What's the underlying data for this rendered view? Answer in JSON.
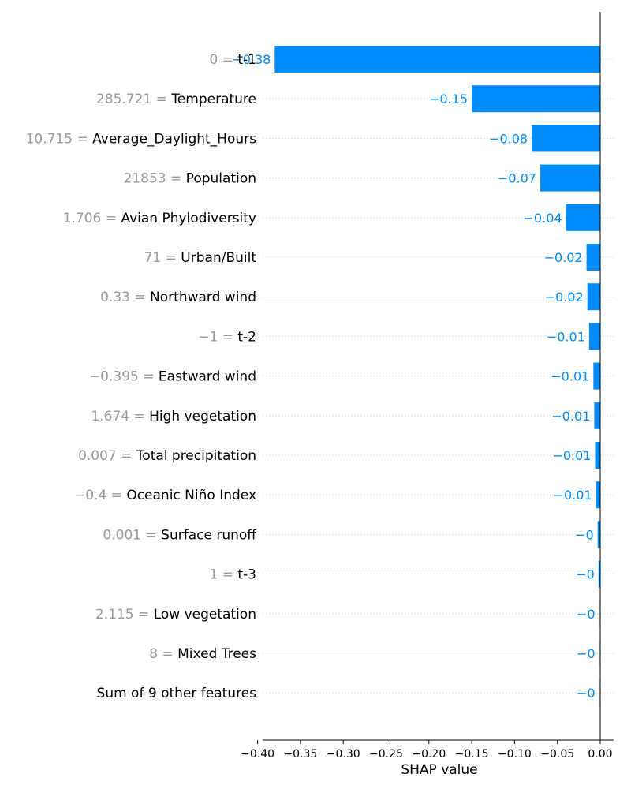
{
  "chart_data": {
    "type": "bar",
    "orientation": "horizontal",
    "xlabel": "SHAP value",
    "xlim": [
      -0.415,
      0.017
    ],
    "xticks": [
      -0.4,
      -0.35,
      -0.3,
      -0.25,
      -0.2,
      -0.15,
      -0.1,
      -0.05,
      0.0
    ],
    "xtick_labels": [
      "−0.40",
      "−0.35",
      "−0.30",
      "−0.25",
      "−0.20",
      "−0.15",
      "−0.10",
      "−0.05",
      "0.00"
    ],
    "grid": "horizontal dotted lines",
    "colors": {
      "negative": "#008bfb",
      "label": "#008bfb",
      "value_text": "#999999"
    },
    "features": [
      {
        "value": "0",
        "name": "t-1",
        "shap": -0.38,
        "label": "−0.38"
      },
      {
        "value": "285.721",
        "name": "Temperature",
        "shap": -0.15,
        "label": "−0.15"
      },
      {
        "value": "10.715",
        "name": "Average_Daylight_Hours",
        "shap": -0.08,
        "label": "−0.08"
      },
      {
        "value": "21853",
        "name": "Population",
        "shap": -0.07,
        "label": "−0.07"
      },
      {
        "value": "1.706",
        "name": "Avian Phylodiversity",
        "shap": -0.04,
        "label": "−0.04"
      },
      {
        "value": "71",
        "name": "Urban/Built",
        "shap": -0.016,
        "label": "−0.02"
      },
      {
        "value": "0.33",
        "name": "Northward wind",
        "shap": -0.015,
        "label": "−0.02"
      },
      {
        "value": "−1",
        "name": "t-2",
        "shap": -0.013,
        "label": "−0.01"
      },
      {
        "value": "−0.395",
        "name": "Eastward wind",
        "shap": -0.008,
        "label": "−0.01"
      },
      {
        "value": "1.674",
        "name": "High vegetation",
        "shap": -0.007,
        "label": "−0.01"
      },
      {
        "value": "0.007",
        "name": "Total precipitation",
        "shap": -0.006,
        "label": "−0.01"
      },
      {
        "value": "−0.4",
        "name": "Oceanic Niño Index",
        "shap": -0.005,
        "label": "−0.01"
      },
      {
        "value": "0.001",
        "name": "Surface runoff",
        "shap": -0.003,
        "label": "−0"
      },
      {
        "value": "1",
        "name": "t-3",
        "shap": -0.002,
        "label": "−0"
      },
      {
        "value": "2.115",
        "name": "Low vegetation",
        "shap": -0.001,
        "label": "−0"
      },
      {
        "value": "8",
        "name": "Mixed Trees",
        "shap": -0.0005,
        "label": "−0"
      },
      {
        "value": "",
        "name": "Sum of 9 other features",
        "shap": -0.0003,
        "label": "−0"
      }
    ]
  }
}
